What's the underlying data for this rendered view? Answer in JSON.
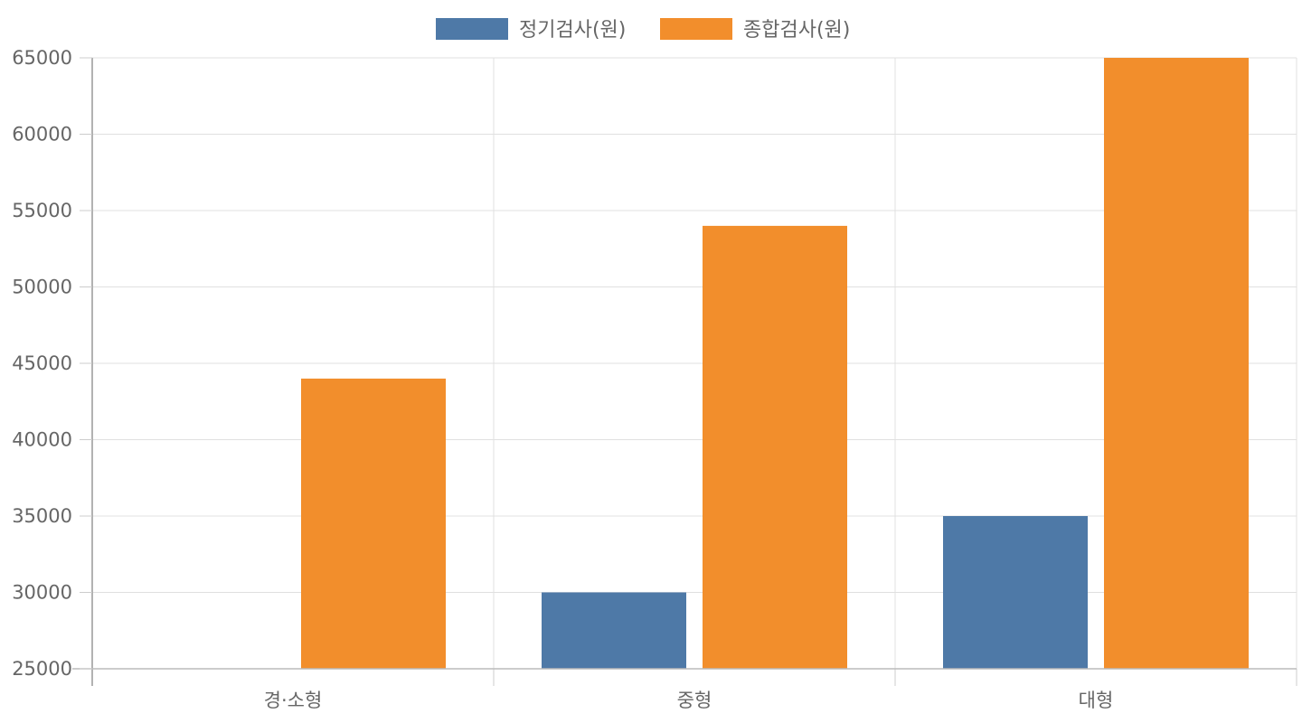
{
  "chart_data": {
    "type": "bar",
    "categories": [
      "경·소형",
      "중형",
      "대형"
    ],
    "series": [
      {
        "name": "정기검사(원)",
        "color": "#4e79a7",
        "values": [
          null,
          30000,
          35000
        ]
      },
      {
        "name": "종합검사(원)",
        "color": "#f28e2c",
        "values": [
          44000,
          54000,
          65000
        ]
      }
    ],
    "ylim": [
      25000,
      65000
    ],
    "y_ticks": [
      65000,
      60000,
      55000,
      50000,
      45000,
      40000,
      35000,
      30000,
      25000
    ],
    "title": "",
    "xlabel": "",
    "ylabel": "",
    "grid": true,
    "legend_position": "top-center"
  }
}
